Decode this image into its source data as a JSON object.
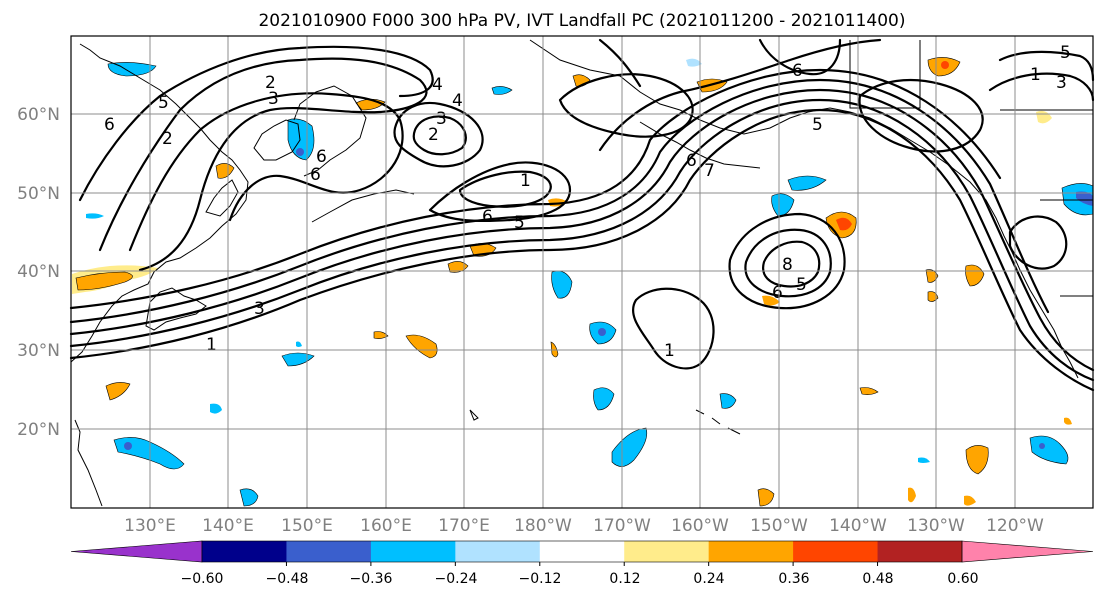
{
  "title": "2021010900 F000 300 hPa PV, IVT Landfall PC (2021011200 - 2021011400)",
  "map": {
    "lon_labels": [
      "130°E",
      "140°E",
      "150°E",
      "160°E",
      "170°E",
      "180°W",
      "170°W",
      "160°W",
      "150°W",
      "140°W",
      "130°W",
      "120°W"
    ],
    "lat_labels": [
      "60°N",
      "50°N",
      "40°N",
      "30°N",
      "20°N"
    ]
  },
  "contour_labels": [
    "2",
    "3",
    "4",
    "4",
    "6",
    "5",
    "2",
    "6",
    "3",
    "2",
    "6",
    "1",
    "6",
    "5",
    "6",
    "5",
    "7",
    "8",
    "6",
    "5",
    "3",
    "1",
    "1",
    "6",
    "3",
    "1",
    "5"
  ],
  "colorbar": {
    "colors": [
      "#9932cc",
      "#00008b",
      "#3a5fcd",
      "#00bfff",
      "#b0e2ff",
      "#ffffff",
      "#ffec8b",
      "#ffa500",
      "#ff4500",
      "#b22222",
      "#ff82ab"
    ],
    "tick_labels": [
      "−0.60",
      "−0.48",
      "−0.36",
      "−0.24",
      "−0.12",
      "0.12",
      "0.24",
      "0.36",
      "0.48",
      "0.60"
    ]
  },
  "shading_colors": {
    "positive_light": "#ffec8b",
    "positive": "#ffa500",
    "positive_strong": "#ff4500",
    "negative_light": "#b0e2ff",
    "negative": "#00bfff",
    "negative_strong": "#3a5fcd",
    "negative_max": "#9932cc"
  }
}
